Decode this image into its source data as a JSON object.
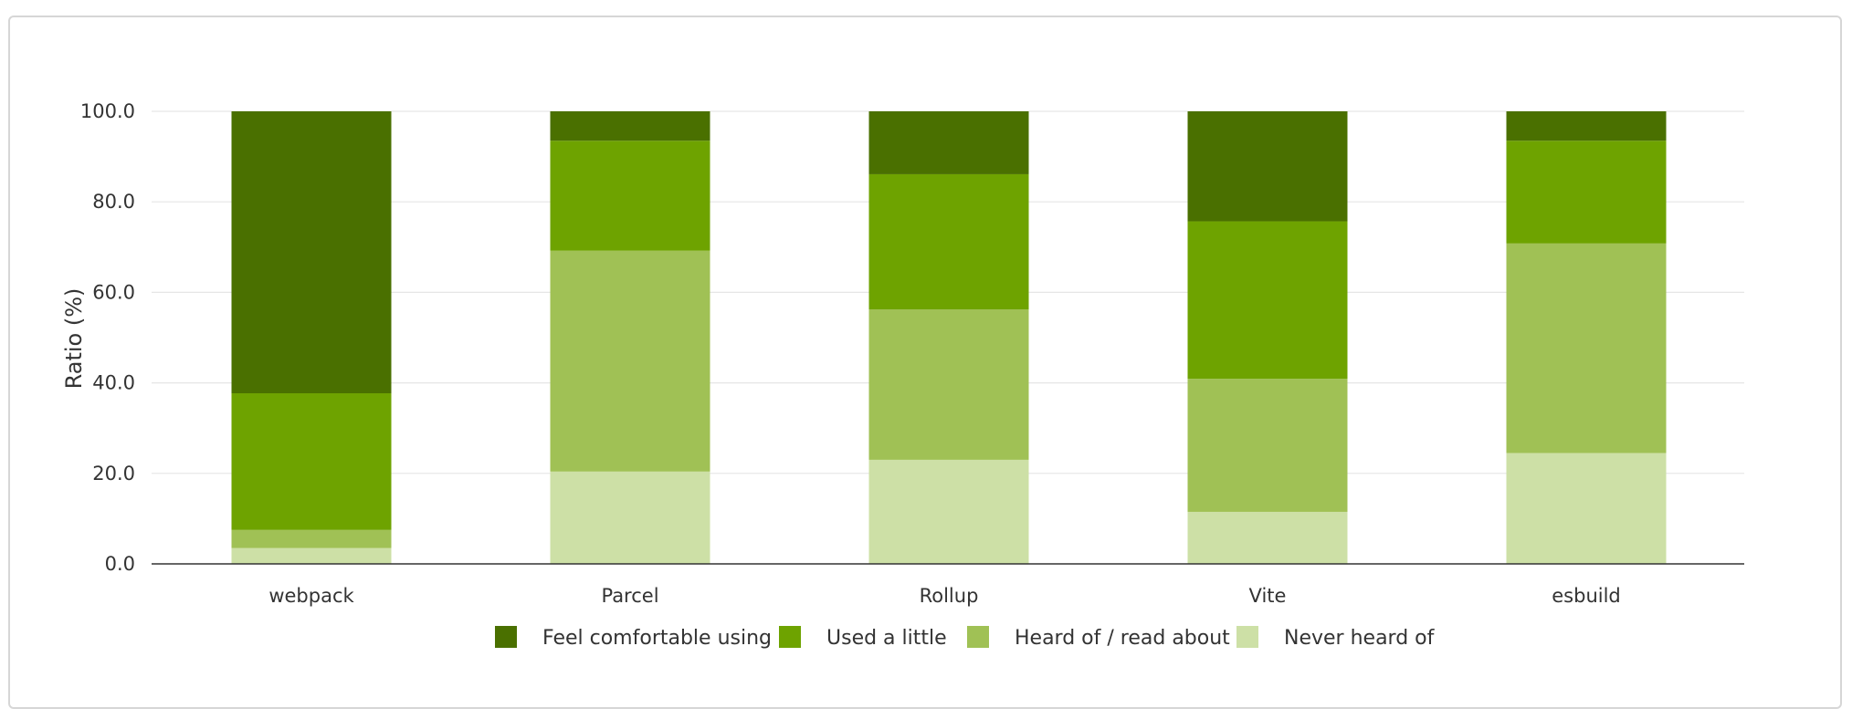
{
  "chart_data": {
    "type": "bar",
    "stacked": true,
    "title": "",
    "xlabel": "",
    "ylabel": "Ratio (%)",
    "ylim": [
      0,
      100
    ],
    "yticks": [
      "0.0",
      "20.0",
      "40.0",
      "60.0",
      "80.0",
      "100.0"
    ],
    "grid": true,
    "legend_position": "bottom",
    "categories": [
      "webpack",
      "Parcel",
      "Rollup",
      "Vite",
      "esbuild"
    ],
    "series": [
      {
        "name": "Never heard of",
        "color": "#cde0a6",
        "values": [
          3.5,
          20.4,
          23.0,
          11.5,
          24.5
        ]
      },
      {
        "name": "Heard of / read about",
        "color": "#a0c155",
        "values": [
          4.0,
          48.8,
          33.2,
          29.4,
          46.3
        ]
      },
      {
        "name": "Used a little",
        "color": "#6ea300",
        "values": [
          30.2,
          24.3,
          29.9,
          34.8,
          22.7
        ]
      },
      {
        "name": "Feel comfortable using",
        "color": "#4a7000",
        "values": [
          62.3,
          6.5,
          13.9,
          24.3,
          6.5
        ]
      }
    ],
    "legend_order": [
      "Feel comfortable using",
      "Used a little",
      "Heard of / read about",
      "Never heard of"
    ]
  }
}
